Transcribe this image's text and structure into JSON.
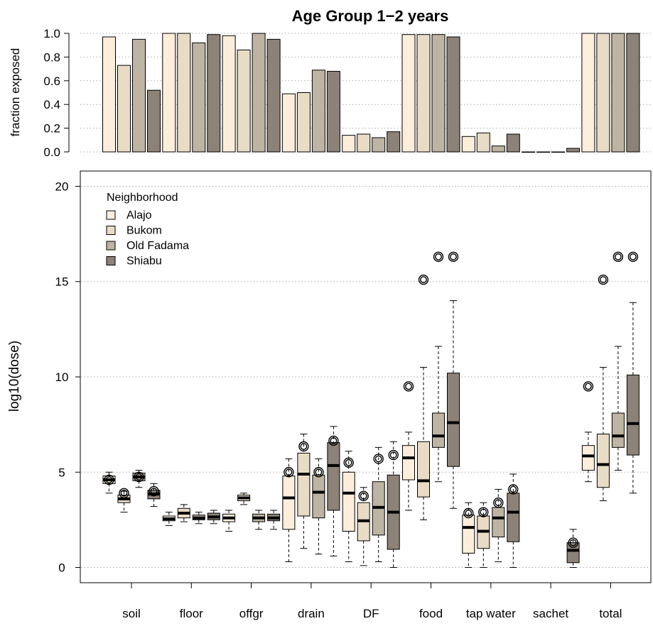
{
  "chart_data": {
    "type": "bar+boxplot",
    "title": "Age Group 1−2 years",
    "categories": [
      "soil",
      "floor",
      "offgr",
      "drain",
      "DF",
      "food",
      "tap water",
      "sachet",
      "total"
    ],
    "legend": {
      "title": "Neighborhood",
      "placement": "top-left",
      "entries": [
        {
          "name": "Alajo",
          "color": "#fdeedc"
        },
        {
          "name": "Bukom",
          "color": "#e8dcc6"
        },
        {
          "name": "Old Fadama",
          "color": "#beb4a3"
        },
        {
          "name": "Shiabu",
          "color": "#8c8278"
        }
      ]
    },
    "top_panel": {
      "ylabel": "fraction exposed",
      "ylim": [
        0,
        1
      ],
      "yticks": [
        "0.0",
        "0.2",
        "0.4",
        "0.6",
        "0.8",
        "1.0"
      ],
      "grid": true,
      "series": [
        {
          "name": "Alajo",
          "values": [
            0.97,
            1.0,
            0.98,
            0.49,
            0.14,
            0.99,
            0.13,
            0.0,
            1.0
          ]
        },
        {
          "name": "Bukom",
          "values": [
            0.73,
            1.0,
            0.86,
            0.5,
            0.15,
            0.99,
            0.16,
            0.0,
            1.0
          ]
        },
        {
          "name": "Old Fadama",
          "values": [
            0.95,
            0.92,
            1.0,
            0.69,
            0.12,
            0.99,
            0.05,
            0.0,
            1.0
          ]
        },
        {
          "name": "Shiabu",
          "values": [
            0.52,
            0.99,
            0.95,
            0.68,
            0.17,
            0.97,
            0.15,
            0.03,
            1.0
          ]
        }
      ]
    },
    "bottom_panel": {
      "ylabel": "log10(dose)",
      "ylim": [
        -0.8,
        20.8
      ],
      "yticks": [
        "0",
        "5",
        "10",
        "15",
        "20"
      ],
      "grid": true,
      "series": [
        {
          "name": "Alajo",
          "boxes": [
            {
              "min": 3.9,
              "q1": 4.4,
              "median": 4.6,
              "q3": 4.8,
              "max": 5.0,
              "outliers": [
                4.6
              ]
            },
            {
              "min": 2.2,
              "q1": 2.45,
              "median": 2.55,
              "q3": 2.7,
              "max": 2.9,
              "outliers": []
            },
            {
              "min": 1.9,
              "q1": 2.4,
              "median": 2.6,
              "q3": 2.8,
              "max": 3.0,
              "outliers": []
            },
            {
              "min": 0.3,
              "q1": 2.0,
              "median": 3.65,
              "q3": 4.8,
              "max": 5.7,
              "outliers": [
                5.0
              ]
            },
            {
              "min": 0.3,
              "q1": 1.9,
              "median": 3.9,
              "q3": 5.0,
              "max": 6.1,
              "outliers": [
                5.5
              ]
            },
            {
              "min": 3.0,
              "q1": 4.6,
              "median": 5.75,
              "q3": 6.4,
              "max": 7.1,
              "outliers": [
                9.5
              ]
            },
            {
              "min": 0.0,
              "q1": 0.75,
              "median": 2.1,
              "q3": 2.75,
              "max": 3.4,
              "outliers": [
                2.85
              ]
            },
            null,
            {
              "min": 4.5,
              "q1": 5.1,
              "median": 5.85,
              "q3": 6.4,
              "max": 7.1,
              "outliers": [
                9.5
              ]
            }
          ]
        },
        {
          "name": "Bukom",
          "boxes": [
            {
              "min": 2.9,
              "q1": 3.4,
              "median": 3.6,
              "q3": 3.8,
              "max": 4.0,
              "outliers": [
                3.9
              ]
            },
            {
              "min": 2.4,
              "q1": 2.6,
              "median": 2.85,
              "q3": 3.1,
              "max": 3.3,
              "outliers": []
            },
            {
              "min": 3.3,
              "q1": 3.5,
              "median": 3.65,
              "q3": 3.8,
              "max": 3.9,
              "outliers": []
            },
            {
              "min": 1.0,
              "q1": 2.7,
              "median": 4.9,
              "q3": 6.0,
              "max": 7.0,
              "outliers": [
                6.35
              ]
            },
            {
              "min": 0.1,
              "q1": 1.4,
              "median": 2.45,
              "q3": 3.4,
              "max": 4.2,
              "outliers": [
                3.75
              ]
            },
            {
              "min": 2.5,
              "q1": 3.7,
              "median": 4.55,
              "q3": 6.6,
              "max": 10.5,
              "outliers": [
                15.1
              ]
            },
            {
              "min": 0.0,
              "q1": 1.0,
              "median": 1.9,
              "q3": 2.7,
              "max": 3.4,
              "outliers": [
                2.9
              ]
            },
            null,
            {
              "min": 3.5,
              "q1": 4.2,
              "median": 5.4,
              "q3": 7.0,
              "max": 10.5,
              "outliers": [
                15.1
              ]
            }
          ]
        },
        {
          "name": "Old Fadama",
          "boxes": [
            {
              "min": 4.2,
              "q1": 4.55,
              "median": 4.75,
              "q3": 4.95,
              "max": 5.1,
              "outliers": [
                4.75
              ]
            },
            {
              "min": 2.3,
              "q1": 2.5,
              "median": 2.6,
              "q3": 2.75,
              "max": 2.9,
              "outliers": []
            },
            {
              "min": 2.0,
              "q1": 2.4,
              "median": 2.6,
              "q3": 2.8,
              "max": 3.0,
              "outliers": []
            },
            {
              "min": 0.7,
              "q1": 2.6,
              "median": 3.95,
              "q3": 4.85,
              "max": 5.7,
              "outliers": [
                5.0
              ]
            },
            {
              "min": 0.3,
              "q1": 1.7,
              "median": 3.15,
              "q3": 4.5,
              "max": 6.3,
              "outliers": [
                5.7
              ]
            },
            {
              "min": 4.5,
              "q1": 6.3,
              "median": 6.9,
              "q3": 8.1,
              "max": 11.6,
              "outliers": [
                16.3
              ]
            },
            {
              "min": 0.3,
              "q1": 1.6,
              "median": 2.6,
              "q3": 3.15,
              "max": 4.1,
              "outliers": [
                3.4
              ]
            },
            null,
            {
              "min": 5.1,
              "q1": 6.3,
              "median": 6.9,
              "q3": 8.1,
              "max": 11.6,
              "outliers": [
                16.3
              ]
            }
          ]
        },
        {
          "name": "Shiabu",
          "boxes": [
            {
              "min": 3.2,
              "q1": 3.6,
              "median": 3.85,
              "q3": 4.05,
              "max": 4.4,
              "outliers": [
                4.0
              ]
            },
            {
              "min": 2.3,
              "q1": 2.5,
              "median": 2.65,
              "q3": 2.85,
              "max": 3.0,
              "outliers": []
            },
            {
              "min": 2.0,
              "q1": 2.45,
              "median": 2.6,
              "q3": 2.8,
              "max": 3.0,
              "outliers": []
            },
            {
              "min": 0.6,
              "q1": 3.0,
              "median": 5.35,
              "q3": 6.55,
              "max": 7.4,
              "outliers": [
                6.65
              ]
            },
            {
              "min": 0.0,
              "q1": 0.95,
              "median": 2.9,
              "q3": 4.85,
              "max": 6.6,
              "outliers": [
                5.9
              ]
            },
            {
              "min": 3.1,
              "q1": 5.3,
              "median": 7.6,
              "q3": 10.2,
              "max": 14.0,
              "outliers": [
                16.3
              ]
            },
            {
              "min": 0.0,
              "q1": 1.35,
              "median": 2.9,
              "q3": 3.9,
              "max": 4.9,
              "outliers": [
                4.1
              ]
            },
            {
              "min": 0.0,
              "q1": 0.25,
              "median": 0.9,
              "q3": 1.3,
              "max": 2.0,
              "outliers": [
                1.3
              ]
            },
            {
              "min": 3.9,
              "q1": 5.9,
              "median": 7.55,
              "q3": 10.1,
              "max": 13.9,
              "outliers": [
                16.3
              ]
            }
          ]
        }
      ]
    }
  }
}
